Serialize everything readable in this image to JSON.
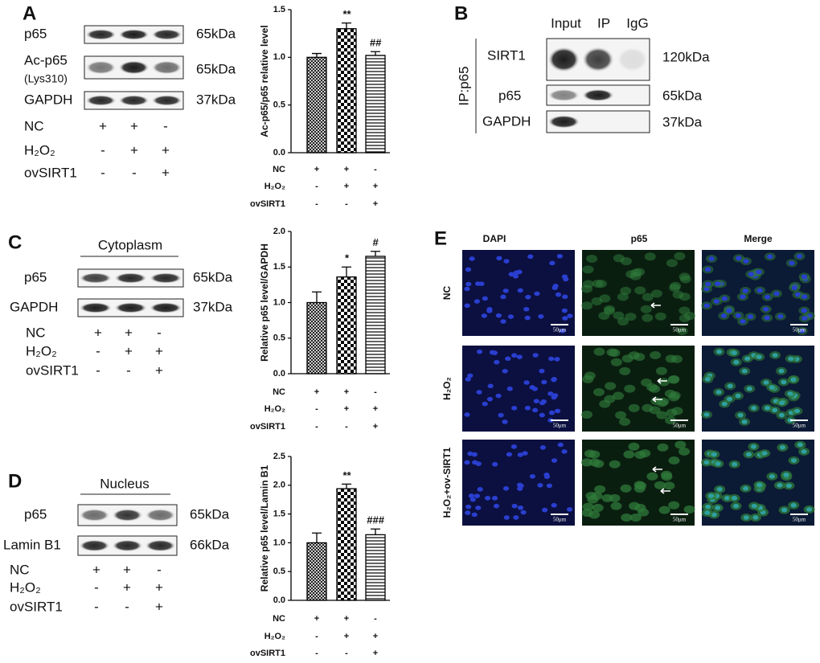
{
  "panels": {
    "a": "A",
    "b": "B",
    "c": "C",
    "d": "D",
    "e": "E"
  },
  "blot_a": {
    "rows": [
      {
        "label": "p65",
        "kda": "65kDa"
      },
      {
        "label": "Ac-p65",
        "sublabel": "(Lys310)",
        "kda": "65kDa"
      },
      {
        "label": "GAPDH",
        "kda": "37kDa"
      }
    ],
    "conditions": [
      {
        "label": "NC",
        "signs": [
          "+",
          "+",
          "-"
        ]
      },
      {
        "label": "H₂O₂",
        "signs": [
          "-",
          "+",
          "+"
        ]
      },
      {
        "label": "ovSIRT1",
        "signs": [
          "-",
          "-",
          "+"
        ]
      }
    ]
  },
  "blot_b": {
    "side_label": "IP:p65",
    "lanes": [
      "Input",
      "IP",
      "IgG"
    ],
    "rows": [
      {
        "label": "SIRT1",
        "kda": "120kDa"
      },
      {
        "label": "p65",
        "kda": "65kDa"
      },
      {
        "label": "GAPDH",
        "kda": "37kDa"
      }
    ]
  },
  "blot_c": {
    "header": "Cytoplasm",
    "rows": [
      {
        "label": "p65",
        "kda": "65kDa"
      },
      {
        "label": "GAPDH",
        "kda": "37kDa"
      }
    ],
    "conditions": [
      {
        "label": "NC",
        "signs": [
          "+",
          "+",
          "-"
        ]
      },
      {
        "label": "H₂O₂",
        "signs": [
          "-",
          "+",
          "+"
        ]
      },
      {
        "label": "ovSIRT1",
        "signs": [
          "-",
          "-",
          "+"
        ]
      }
    ]
  },
  "blot_d": {
    "header": "Nucleus",
    "rows": [
      {
        "label": "p65",
        "kda": "65kDa"
      },
      {
        "label": "Lamin B1",
        "kda": "66kDa"
      }
    ],
    "conditions": [
      {
        "label": "NC",
        "signs": [
          "+",
          "+",
          "-"
        ]
      },
      {
        "label": "H₂O₂",
        "signs": [
          "-",
          "+",
          "+"
        ]
      },
      {
        "label": "ovSIRT1",
        "signs": [
          "-",
          "-",
          "+"
        ]
      }
    ]
  },
  "panel_e": {
    "columns": [
      "DAPI",
      "p65",
      "Merge"
    ],
    "rows": [
      "NC",
      "H₂O₂",
      "H₂O₂+ov-SIRT1"
    ],
    "scale_bar": "50μm"
  },
  "chart_data": [
    {
      "type": "bar",
      "y_label": "Ac-p65/p65 relative level",
      "values": [
        1.0,
        1.3,
        1.02
      ],
      "errors": [
        0.04,
        0.06,
        0.04
      ],
      "annotations": [
        null,
        "**",
        "##"
      ],
      "patterns": [
        "crosshatch",
        "checker",
        "hlines"
      ],
      "color": "#000000",
      "ylim": [
        0,
        1.5
      ],
      "yticks": [
        {
          "value": 0,
          "label": "0.0"
        },
        {
          "value": 0.5,
          "label": "0.5"
        },
        {
          "value": 1,
          "label": "1.0"
        },
        {
          "value": 1.5,
          "label": "1.5"
        }
      ],
      "conditions": [
        {
          "label": "NC",
          "signs": [
            "+",
            "+",
            "-"
          ]
        },
        {
          "label": "H₂O₂",
          "signs": [
            "-",
            "+",
            "+"
          ]
        },
        {
          "label": "ovSIRT1",
          "signs": [
            "-",
            "-",
            "+"
          ]
        }
      ]
    },
    {
      "type": "bar",
      "y_label": "Relative p65 level/GAPDH",
      "values": [
        1.0,
        1.36,
        1.65
      ],
      "errors": [
        0.15,
        0.14,
        0.07
      ],
      "annotations": [
        null,
        "*",
        "#"
      ],
      "patterns": [
        "crosshatch",
        "checker",
        "hlines"
      ],
      "color": "#000000",
      "ylim": [
        0,
        2
      ],
      "yticks": [
        {
          "value": 0,
          "label": "0.0"
        },
        {
          "value": 0.5,
          "label": "0.5"
        },
        {
          "value": 1,
          "label": "1.0"
        },
        {
          "value": 1.5,
          "label": "1.5"
        },
        {
          "value": 2,
          "label": "2.0"
        }
      ],
      "conditions": [
        {
          "label": "NC",
          "signs": [
            "+",
            "+",
            "-"
          ]
        },
        {
          "label": "H₂O₂",
          "signs": [
            "-",
            "+",
            "+"
          ]
        },
        {
          "label": "ovSIRT1",
          "signs": [
            "-",
            "-",
            "+"
          ]
        }
      ]
    },
    {
      "type": "bar",
      "y_label": "Relative p65 level/Lamin B1",
      "values": [
        1.0,
        1.94,
        1.14
      ],
      "errors": [
        0.17,
        0.08,
        0.1
      ],
      "annotations": [
        null,
        "**",
        "###"
      ],
      "patterns": [
        "crosshatch",
        "checker",
        "hlines"
      ],
      "color": "#000000",
      "ylim": [
        0,
        2.5
      ],
      "yticks": [
        {
          "value": 0,
          "label": "0.0"
        },
        {
          "value": 0.5,
          "label": "0.5"
        },
        {
          "value": 1,
          "label": "1.0"
        },
        {
          "value": 1.5,
          "label": "1.5"
        },
        {
          "value": 2,
          "label": "2.0"
        },
        {
          "value": 2.5,
          "label": "2.5"
        }
      ],
      "conditions": [
        {
          "label": "NC",
          "signs": [
            "+",
            "+",
            "-"
          ]
        },
        {
          "label": "H₂O₂",
          "signs": [
            "-",
            "+",
            "+"
          ]
        },
        {
          "label": "ovSIRT1",
          "signs": [
            "-",
            "-",
            "+"
          ]
        }
      ]
    }
  ]
}
